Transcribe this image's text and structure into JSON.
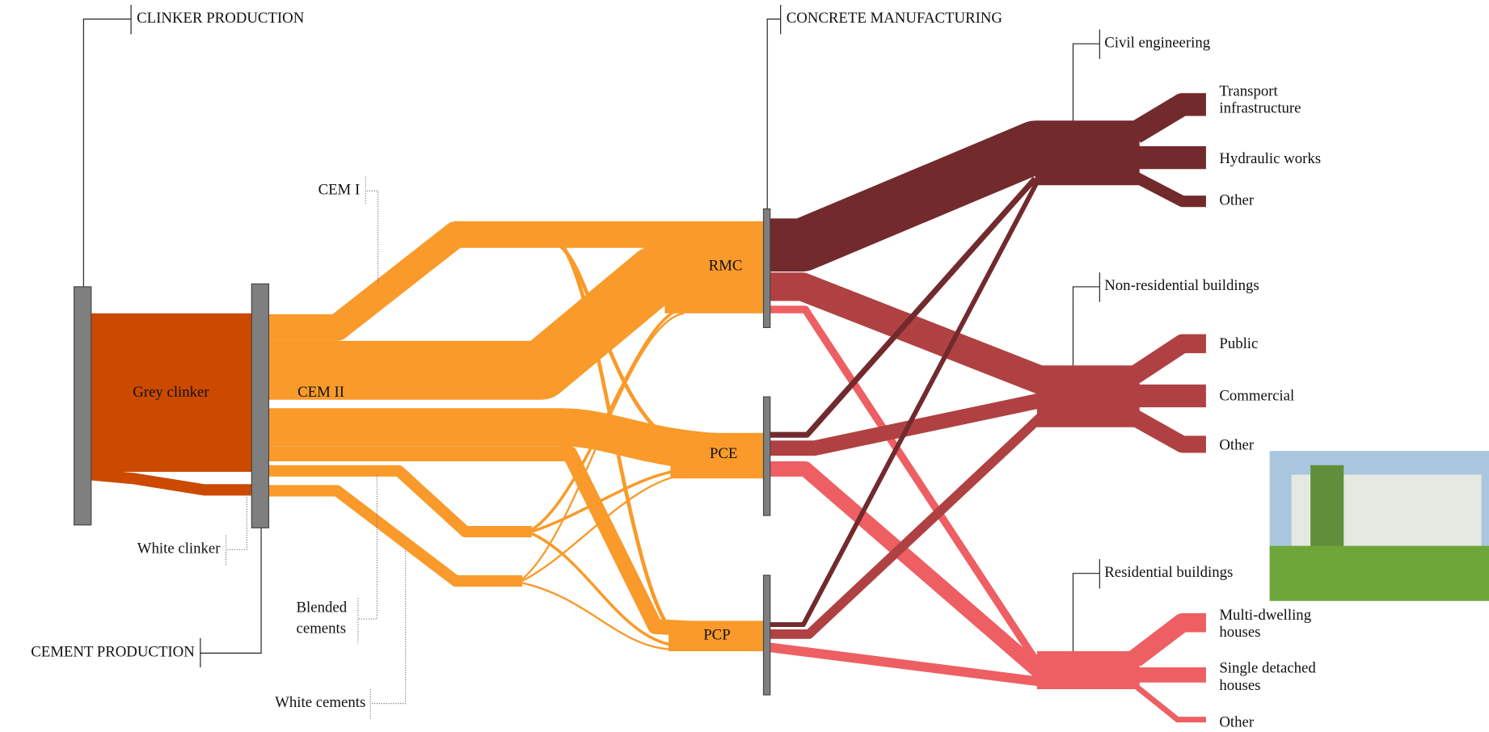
{
  "stages": {
    "clinker": "CLINKER PRODUCTION",
    "cement": "CEMENT PRODUCTION",
    "concrete": "CONCRETE MANUFACTURING"
  },
  "clinker_nodes": [
    "Grey clinker",
    "White clinker"
  ],
  "cement_nodes": {
    "cem1": "CEM I",
    "cem2": "CEM II",
    "blended": [
      "Blended",
      "cements"
    ],
    "white": "White cements"
  },
  "concrete_nodes": [
    "RMC",
    "PCE",
    "PCP"
  ],
  "sectors": [
    {
      "name": "Civil engineering",
      "subs": [
        [
          "Transport",
          "infrastructure"
        ],
        [
          "Hydraulic works"
        ],
        [
          "Other"
        ]
      ]
    },
    {
      "name": "Non-residential buildings",
      "subs": [
        [
          "Public"
        ],
        [
          "Commercial"
        ],
        [
          "Other"
        ]
      ]
    },
    {
      "name": "Residential buildings",
      "subs": [
        [
          "Multi-dwelling",
          "houses"
        ],
        [
          "Single detached",
          "houses"
        ],
        [
          "Other"
        ]
      ]
    }
  ]
}
